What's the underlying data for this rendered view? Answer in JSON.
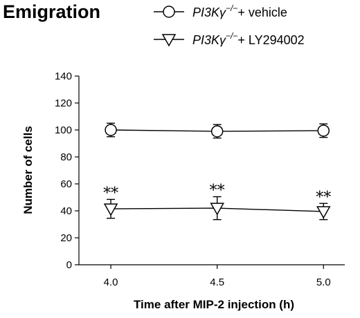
{
  "chart_data": {
    "type": "line",
    "title": "Emigration",
    "xlabel": "Time after MIP-2 injection (h)",
    "ylabel": "Number of cells",
    "x": [
      4.0,
      4.5,
      5.0
    ],
    "x_tick_labels": [
      "4.0",
      "4.5",
      "5.0"
    ],
    "xlim": [
      3.85,
      5.1
    ],
    "ylim": [
      0,
      140
    ],
    "y_ticks": [
      0,
      20,
      40,
      60,
      80,
      100,
      120,
      140
    ],
    "grid": false,
    "legend_position": "top-right",
    "series": [
      {
        "legend_prefix": "PI3Kγ",
        "legend_sup": "−/−",
        "legend_suffix": "+ vehicle",
        "marker": "circle",
        "values": [
          100,
          99,
          99.5
        ],
        "error_up": [
          5,
          5,
          5
        ],
        "error_down": [
          5,
          5,
          5
        ]
      },
      {
        "legend_prefix": "PI3Kγ",
        "legend_sup": "−/−",
        "legend_suffix": "+ LY294002",
        "marker": "triangle-down",
        "values": [
          41.5,
          42,
          39.5
        ],
        "error_up": [
          7,
          8.5,
          6
        ],
        "error_down": [
          7,
          8.5,
          6
        ],
        "annotations": [
          "**",
          "**",
          "**"
        ]
      }
    ]
  }
}
